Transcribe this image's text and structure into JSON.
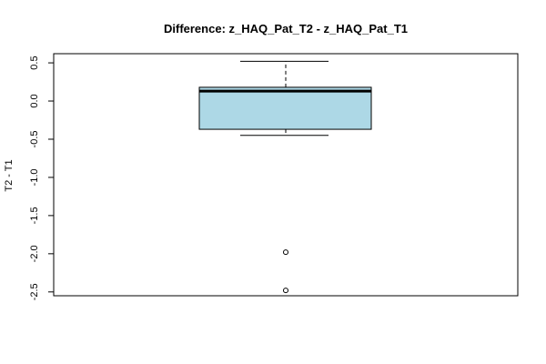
{
  "chart_data": {
    "type": "boxplot",
    "title": "Difference: z_HAQ_Pat_T2 - z_HAQ_Pat_T1",
    "xlabel": "",
    "ylabel": "T2 - T1",
    "ylim": [
      -2.55,
      0.62
    ],
    "yticks": [
      0.5,
      0.0,
      -0.5,
      -1.0,
      -1.5,
      -2.0,
      -2.5
    ],
    "ytick_labels": [
      "0.5",
      "0.0",
      "-0.5",
      "-1.0",
      "-1.5",
      "-2.0",
      "-2.5"
    ],
    "grid": false,
    "box": {
      "whisker_low": -0.45,
      "q1": -0.37,
      "median": 0.13,
      "q3": 0.18,
      "whisker_high": 0.52
    },
    "outliers": [
      -1.98,
      -2.48
    ],
    "colors": {
      "box_fill": "#add8e6",
      "stroke": "#000000"
    }
  }
}
